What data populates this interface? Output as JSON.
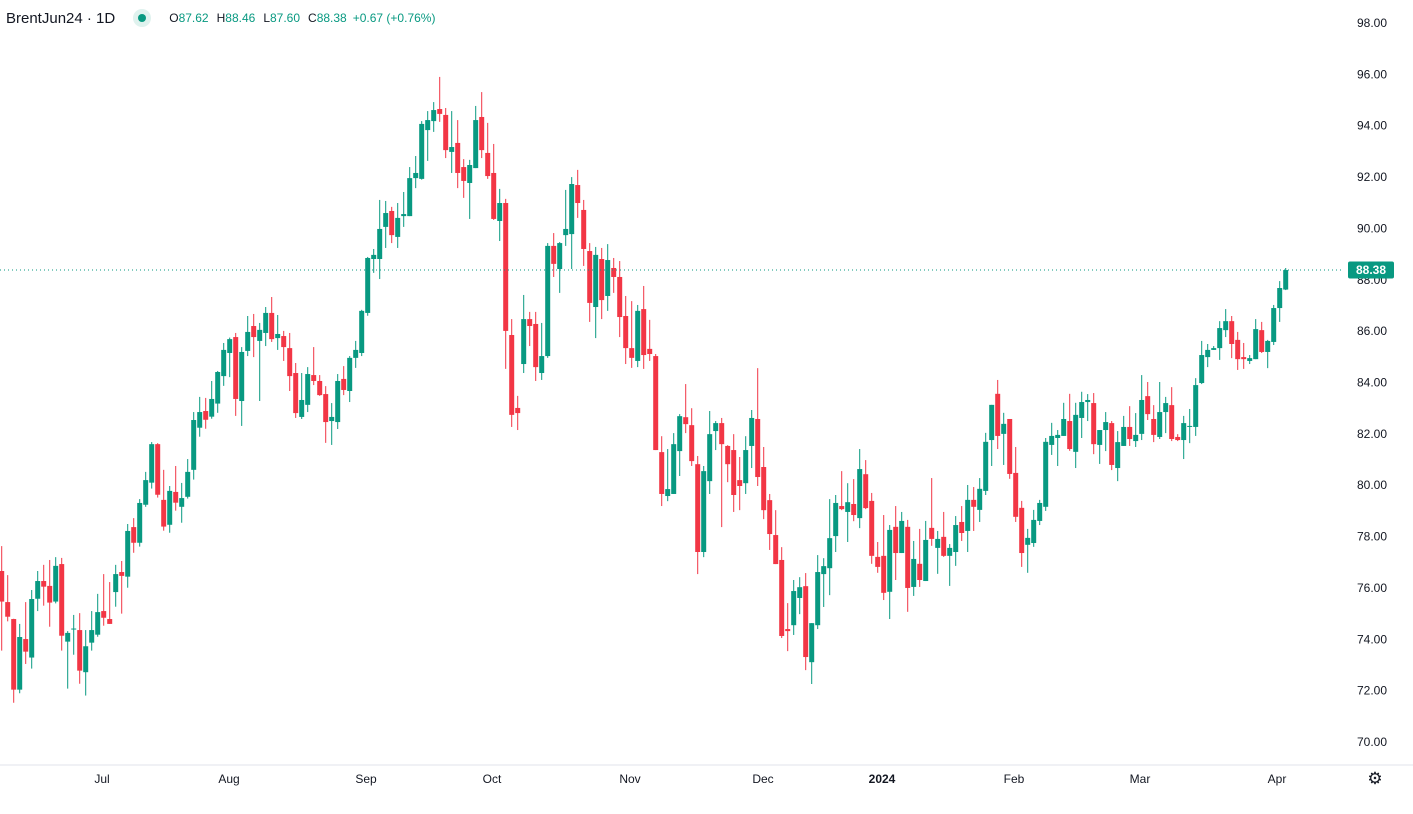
{
  "legend": {
    "symbol": "BrentJun24 · 1D",
    "open_label": "O",
    "open": "87.62",
    "high_label": "H",
    "high": "88.46",
    "low_label": "L",
    "low": "87.60",
    "close_label": "C",
    "close": "88.38",
    "change": "+0.67 (+0.76%)"
  },
  "last_price_label": "88.38",
  "settings_icon": "gear-icon",
  "colors": {
    "up": "#089981",
    "down": "#F23645",
    "last_price": "#089981",
    "grid_axis": "#e0e3eb"
  },
  "chart_data": {
    "type": "candlestick",
    "symbol": "BrentJun24",
    "interval": "1D",
    "ylim": [
      69,
      99
    ],
    "y_ticks": [
      "98.00",
      "96.00",
      "94.00",
      "92.00",
      "90.00",
      "88.00",
      "86.00",
      "84.00",
      "82.00",
      "80.00",
      "78.00",
      "76.00",
      "74.00",
      "72.00",
      "70.00"
    ],
    "x_ticks": [
      "Jul",
      "Aug",
      "Sep",
      "Oct",
      "Nov",
      "Dec",
      "2024",
      "Feb",
      "Mar",
      "Apr"
    ],
    "last_price": 88.38,
    "grid": false,
    "ohlc_fields": [
      "open",
      "high",
      "low",
      "close"
    ],
    "candles": [
      [
        76.66,
        77.63,
        73.56,
        75.47
      ],
      [
        75.45,
        76.5,
        74.7,
        74.88
      ],
      [
        74.79,
        74.8,
        71.53,
        72.04
      ],
      [
        72.04,
        74.6,
        71.9,
        74.09
      ],
      [
        74.01,
        75.45,
        73.04,
        73.52
      ],
      [
        73.29,
        75.92,
        72.86,
        75.57
      ],
      [
        75.58,
        76.66,
        75.1,
        76.27
      ],
      [
        76.27,
        76.9,
        75.31,
        76.05
      ],
      [
        76.08,
        77.09,
        74.49,
        75.43
      ],
      [
        75.47,
        77.2,
        75.4,
        76.86
      ],
      [
        76.93,
        77.17,
        73.56,
        74.14
      ],
      [
        73.91,
        74.32,
        72.08,
        74.25
      ],
      [
        74.4,
        74.95,
        73.4,
        74.42
      ],
      [
        74.36,
        75.02,
        72.27,
        72.78
      ],
      [
        72.72,
        74.36,
        71.81,
        73.73
      ],
      [
        73.87,
        75.1,
        73.56,
        74.36
      ],
      [
        74.18,
        75.77,
        74.1,
        75.06
      ],
      [
        75.1,
        76.54,
        74.53,
        74.84
      ],
      [
        74.79,
        76.23,
        74.6,
        74.6
      ],
      [
        75.84,
        76.9,
        75.27,
        76.54
      ],
      [
        76.62,
        77.05,
        75.0,
        76.47
      ],
      [
        76.44,
        78.49,
        76.01,
        78.22
      ],
      [
        78.37,
        78.72,
        77.37,
        77.76
      ],
      [
        77.76,
        79.46,
        77.61,
        79.31
      ],
      [
        79.24,
        80.52,
        79.16,
        80.2
      ],
      [
        80.1,
        81.68,
        79.87,
        81.6
      ],
      [
        81.6,
        81.64,
        79.52,
        79.63
      ],
      [
        79.43,
        80.6,
        78.23,
        78.39
      ],
      [
        78.46,
        79.97,
        78.15,
        79.78
      ],
      [
        79.74,
        80.75,
        79.01,
        79.32
      ],
      [
        79.16,
        80.09,
        78.54,
        79.5
      ],
      [
        79.55,
        81.02,
        79.48,
        80.52
      ],
      [
        80.6,
        82.85,
        80.22,
        82.54
      ],
      [
        82.24,
        83.44,
        81.89,
        82.85
      ],
      [
        82.89,
        83.4,
        82.2,
        82.55
      ],
      [
        82.67,
        84.06,
        82.59,
        83.36
      ],
      [
        83.18,
        84.45,
        82.82,
        84.41
      ],
      [
        84.25,
        85.54,
        83.87,
        85.27
      ],
      [
        85.15,
        85.75,
        84.21,
        85.69
      ],
      [
        85.77,
        85.93,
        82.7,
        83.36
      ],
      [
        83.28,
        85.38,
        82.31,
        85.19
      ],
      [
        85.23,
        86.59,
        85.03,
        85.97
      ],
      [
        86.2,
        86.67,
        84.99,
        85.77
      ],
      [
        85.62,
        86.32,
        83.28,
        86.05
      ],
      [
        85.93,
        86.94,
        85.42,
        86.71
      ],
      [
        86.71,
        87.33,
        85.58,
        85.69
      ],
      [
        85.73,
        86.63,
        85.27,
        85.89
      ],
      [
        85.81,
        86.01,
        84.84,
        85.38
      ],
      [
        85.34,
        85.93,
        83.67,
        84.25
      ],
      [
        84.37,
        84.76,
        82.62,
        82.81
      ],
      [
        82.66,
        84.37,
        82.58,
        83.32
      ],
      [
        83.13,
        84.6,
        82.85,
        84.33
      ],
      [
        84.29,
        85.38,
        83.9,
        84.06
      ],
      [
        84.06,
        84.29,
        83.48,
        83.51
      ],
      [
        83.55,
        83.86,
        81.65,
        82.46
      ],
      [
        82.5,
        83.2,
        81.57,
        82.66
      ],
      [
        82.46,
        84.33,
        82.19,
        84.06
      ],
      [
        84.14,
        84.64,
        83.51,
        83.71
      ],
      [
        83.67,
        85.03,
        83.24,
        84.96
      ],
      [
        84.96,
        85.62,
        84.57,
        85.27
      ],
      [
        85.15,
        86.83,
        85.03,
        86.79
      ],
      [
        86.71,
        88.89,
        86.6,
        88.85
      ],
      [
        88.81,
        89.2,
        88.27,
        88.97
      ],
      [
        88.81,
        91.11,
        88.03,
        89.98
      ],
      [
        90.06,
        91.07,
        89.24,
        90.6
      ],
      [
        90.68,
        90.84,
        89.43,
        89.74
      ],
      [
        89.67,
        90.99,
        89.24,
        90.41
      ],
      [
        90.48,
        91.42,
        90.06,
        90.56
      ],
      [
        90.48,
        92.39,
        90.48,
        91.96
      ],
      [
        91.96,
        92.82,
        91.57,
        92.16
      ],
      [
        91.93,
        94.18,
        91.9,
        94.07
      ],
      [
        93.83,
        94.57,
        92.63,
        94.22
      ],
      [
        94.18,
        94.92,
        93.76,
        94.61
      ],
      [
        94.65,
        95.9,
        94.15,
        94.46
      ],
      [
        94.42,
        94.69,
        92.74,
        93.05
      ],
      [
        92.98,
        94.57,
        92.16,
        93.17
      ],
      [
        93.33,
        94.22,
        91.57,
        92.16
      ],
      [
        92.39,
        92.7,
        91.19,
        91.85
      ],
      [
        91.77,
        92.67,
        90.37,
        92.47
      ],
      [
        92.35,
        94.77,
        92.35,
        94.22
      ],
      [
        94.34,
        95.31,
        92.74,
        93.05
      ],
      [
        92.94,
        94.11,
        91.93,
        92.04
      ],
      [
        92.16,
        93.29,
        90.33,
        90.37
      ],
      [
        90.29,
        91.54,
        89.51,
        90.99
      ],
      [
        90.99,
        91.15,
        84.53,
        86.01
      ],
      [
        85.85,
        86.47,
        82.27,
        82.74
      ],
      [
        83.01,
        83.48,
        82.15,
        82.81
      ],
      [
        84.72,
        87.41,
        84.37,
        86.47
      ],
      [
        86.47,
        86.75,
        85.42,
        86.2
      ],
      [
        86.28,
        86.75,
        84.06,
        84.6
      ],
      [
        84.37,
        86.32,
        84.1,
        85.03
      ],
      [
        85.03,
        89.43,
        84.96,
        89.32
      ],
      [
        89.32,
        89.82,
        88.11,
        88.62
      ],
      [
        88.42,
        89.47,
        87.49,
        89.43
      ],
      [
        89.74,
        91.5,
        89.32,
        89.98
      ],
      [
        89.78,
        92.0,
        88.42,
        91.73
      ],
      [
        91.69,
        92.28,
        90.41,
        90.99
      ],
      [
        90.72,
        91.11,
        88.54,
        89.2
      ],
      [
        89.12,
        89.43,
        86.36,
        87.1
      ],
      [
        86.94,
        89.28,
        85.73,
        88.97
      ],
      [
        88.81,
        89.24,
        86.47,
        87.21
      ],
      [
        87.37,
        89.39,
        86.79,
        88.77
      ],
      [
        88.46,
        88.85,
        87.49,
        88.11
      ],
      [
        88.11,
        88.73,
        85.77,
        86.55
      ],
      [
        86.59,
        87.37,
        84.72,
        85.34
      ],
      [
        85.34,
        87.17,
        84.57,
        84.96
      ],
      [
        84.84,
        87.02,
        84.6,
        86.79
      ],
      [
        86.86,
        87.76,
        84.53,
        85.07
      ],
      [
        85.31,
        86.44,
        84.84,
        85.11
      ],
      [
        85.03,
        85.11,
        81.37,
        81.37
      ],
      [
        81.29,
        81.91,
        79.19,
        79.66
      ],
      [
        79.58,
        81.41,
        79.38,
        79.85
      ],
      [
        79.66,
        82.03,
        79.66,
        81.6
      ],
      [
        81.33,
        82.77,
        80.36,
        82.69
      ],
      [
        82.65,
        83.94,
        82.03,
        82.38
      ],
      [
        82.34,
        83.0,
        80.75,
        80.94
      ],
      [
        80.82,
        81.14,
        76.54,
        77.4
      ],
      [
        77.4,
        80.75,
        77.2,
        80.55
      ],
      [
        80.16,
        82.89,
        79.66,
        81.99
      ],
      [
        82.11,
        82.5,
        81.37,
        82.42
      ],
      [
        82.42,
        82.62,
        78.37,
        81.6
      ],
      [
        81.53,
        81.56,
        80.12,
        80.82
      ],
      [
        81.37,
        81.99,
        78.96,
        79.62
      ],
      [
        80.2,
        81.1,
        79.03,
        79.97
      ],
      [
        80.08,
        81.91,
        79.66,
        81.37
      ],
      [
        81.53,
        82.93,
        80.67,
        82.62
      ],
      [
        82.58,
        84.56,
        79.97,
        80.32
      ],
      [
        80.71,
        81.49,
        78.68,
        79.03
      ],
      [
        79.42,
        79.66,
        77.48,
        78.1
      ],
      [
        78.06,
        79.03,
        76.93,
        76.93
      ],
      [
        77.09,
        77.59,
        74.05,
        74.13
      ],
      [
        74.4,
        75.41,
        73.54,
        74.32
      ],
      [
        74.55,
        76.31,
        74.17,
        75.88
      ],
      [
        75.61,
        76.42,
        74.98,
        76.03
      ],
      [
        76.07,
        76.58,
        72.8,
        73.31
      ],
      [
        73.11,
        74.63,
        72.26,
        74.63
      ],
      [
        74.55,
        77.28,
        74.4,
        76.62
      ],
      [
        76.54,
        77.16,
        75.26,
        76.85
      ],
      [
        76.77,
        79.46,
        75.72,
        77.94
      ],
      [
        78.02,
        79.62,
        77.4,
        79.31
      ],
      [
        79.19,
        80.55,
        79.03,
        79.07
      ],
      [
        78.96,
        80.08,
        77.79,
        79.34
      ],
      [
        79.27,
        80.24,
        78.6,
        78.84
      ],
      [
        78.72,
        81.41,
        78.33,
        80.63
      ],
      [
        80.43,
        80.98,
        79.07,
        79.11
      ],
      [
        79.39,
        79.7,
        76.94,
        77.25
      ],
      [
        77.21,
        77.79,
        76.59,
        76.82
      ],
      [
        77.25,
        78.84,
        75.53,
        75.81
      ],
      [
        75.85,
        78.45,
        74.79,
        78.26
      ],
      [
        78.38,
        79.19,
        76.31,
        77.36
      ],
      [
        77.36,
        78.96,
        77.36,
        78.61
      ],
      [
        78.38,
        78.65,
        75.07,
        76.0
      ],
      [
        76.04,
        77.83,
        75.69,
        77.13
      ],
      [
        76.94,
        78.3,
        76.04,
        76.31
      ],
      [
        76.27,
        78.61,
        76.27,
        77.87
      ],
      [
        78.34,
        80.28,
        77.64,
        77.91
      ],
      [
        77.56,
        78.22,
        76.55,
        77.91
      ],
      [
        77.99,
        78.96,
        77.21,
        77.25
      ],
      [
        77.25,
        77.71,
        76.08,
        77.56
      ],
      [
        77.4,
        78.8,
        76.86,
        78.45
      ],
      [
        78.57,
        79.19,
        77.83,
        78.14
      ],
      [
        78.22,
        80.01,
        77.4,
        79.43
      ],
      [
        79.43,
        79.93,
        78.22,
        79.16
      ],
      [
        79.04,
        80.28,
        78.57,
        79.86
      ],
      [
        79.78,
        82.04,
        79.62,
        81.69
      ],
      [
        81.76,
        83.13,
        80.75,
        83.13
      ],
      [
        83.56,
        84.1,
        81.41,
        81.92
      ],
      [
        82.0,
        82.82,
        80.79,
        82.39
      ],
      [
        82.58,
        82.58,
        80.25,
        80.44
      ],
      [
        80.48,
        81.49,
        78.57,
        78.77
      ],
      [
        79.12,
        79.39,
        76.82,
        77.36
      ],
      [
        77.68,
        78.3,
        76.59,
        77.95
      ],
      [
        77.75,
        79.04,
        77.6,
        78.65
      ],
      [
        78.61,
        79.43,
        78.45,
        79.31
      ],
      [
        79.16,
        81.84,
        79.0,
        81.69
      ],
      [
        81.57,
        82.43,
        81.18,
        81.92
      ],
      [
        81.84,
        82.15,
        80.75,
        81.96
      ],
      [
        81.92,
        83.21,
        81.92,
        82.58
      ],
      [
        82.5,
        83.56,
        81.34,
        81.41
      ],
      [
        81.3,
        83.21,
        80.67,
        82.74
      ],
      [
        82.62,
        83.64,
        81.84,
        83.24
      ],
      [
        83.24,
        83.55,
        82.5,
        83.32
      ],
      [
        83.2,
        83.59,
        81.21,
        81.6
      ],
      [
        81.57,
        82.15,
        80.83,
        82.15
      ],
      [
        82.15,
        82.85,
        81.33,
        82.46
      ],
      [
        82.42,
        82.5,
        80.59,
        80.79
      ],
      [
        80.67,
        82.11,
        80.16,
        81.68
      ],
      [
        81.53,
        82.7,
        81.53,
        82.27
      ],
      [
        82.27,
        83.08,
        81.53,
        81.8
      ],
      [
        81.72,
        82.81,
        81.49,
        81.96
      ],
      [
        82.0,
        84.29,
        81.76,
        83.32
      ],
      [
        83.47,
        84.02,
        82.54,
        82.77
      ],
      [
        82.58,
        83.12,
        81.68,
        81.96
      ],
      [
        81.88,
        84.02,
        81.8,
        82.85
      ],
      [
        82.85,
        83.44,
        82.03,
        83.2
      ],
      [
        83.12,
        83.82,
        81.72,
        81.8
      ],
      [
        81.88,
        81.99,
        81.72,
        81.76
      ],
      [
        81.76,
        82.7,
        81.02,
        82.42
      ],
      [
        82.27,
        82.97,
        81.64,
        82.31
      ],
      [
        82.27,
        84.17,
        81.92,
        83.9
      ],
      [
        83.98,
        85.62,
        83.94,
        85.07
      ],
      [
        84.99,
        85.5,
        84.6,
        85.27
      ],
      [
        85.27,
        85.42,
        85.27,
        85.34
      ],
      [
        85.34,
        86.39,
        84.88,
        86.12
      ],
      [
        86.04,
        86.86,
        85.77,
        86.39
      ],
      [
        86.39,
        86.59,
        84.95,
        85.5
      ],
      [
        85.66,
        85.97,
        84.49,
        84.91
      ],
      [
        84.99,
        85.54,
        84.53,
        84.91
      ],
      [
        84.84,
        85.07,
        84.72,
        84.95
      ],
      [
        84.91,
        86.47,
        84.91,
        86.08
      ],
      [
        86.04,
        86.36,
        85.15,
        85.19
      ],
      [
        85.19,
        85.66,
        84.56,
        85.62
      ],
      [
        85.58,
        87.02,
        85.46,
        86.9
      ],
      [
        86.9,
        87.95,
        86.36,
        87.68
      ],
      [
        87.62,
        88.46,
        87.6,
        88.38
      ]
    ]
  }
}
